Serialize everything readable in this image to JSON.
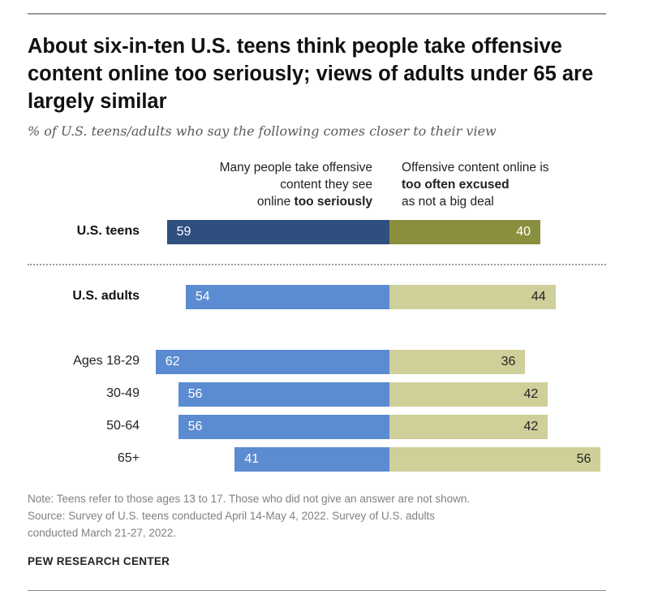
{
  "title": "About six-in-ten U.S. teens think people take offensive content online too seriously; views of adults under 65 are largely similar",
  "subtitle": "% of U.S. teens/adults who say the following comes closer to their view",
  "headers": {
    "left_line1": "Many people take offensive",
    "left_line2": "content they see",
    "left_line3_plain": "online ",
    "left_line3_bold": "too seriously",
    "right_line1": "Offensive content online is",
    "right_line2_bold": "too often excused",
    "right_line3": "as not a big deal"
  },
  "colors": {
    "teens_left": "#2f4f7f",
    "teens_right": "#8a8f3e",
    "adults_left": "#5b8bd1",
    "adults_right": "#cfcf9a",
    "separator": "#9a9a9a"
  },
  "chart_data": {
    "type": "bar",
    "orientation": "horizontal-diverging",
    "categories": [
      "U.S. teens",
      "U.S. adults",
      "Ages 18-29",
      "30-49",
      "50-64",
      "65+"
    ],
    "series": [
      {
        "name": "Many people take offensive content they see online too seriously",
        "values": [
          59,
          54,
          62,
          56,
          56,
          41
        ]
      },
      {
        "name": "Offensive content online is too often excused as not a big deal",
        "values": [
          40,
          44,
          36,
          42,
          42,
          56
        ]
      }
    ]
  },
  "notes": {
    "line1": "Note: Teens refer to those ages 13 to 17. Those who did not give an answer are not shown.",
    "line2": "Source: Survey of U.S. teens conducted April 14-May 4, 2022. Survey of U.S. adults",
    "line3": "conducted March 21-27, 2022."
  },
  "brand": "PEW RESEARCH CENTER"
}
